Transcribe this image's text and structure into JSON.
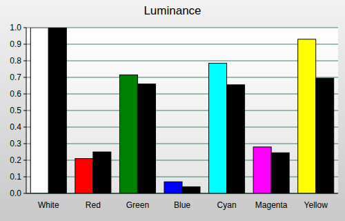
{
  "chart_data": {
    "type": "bar",
    "title": "Luminance",
    "categories": [
      "White",
      "Red",
      "Green",
      "Blue",
      "Cyan",
      "Magenta",
      "Yellow"
    ],
    "series": [
      {
        "colors": [
          "#ffffff",
          "#ff0000",
          "#008000",
          "#0000ff",
          "#00ffff",
          "#ff00ff",
          "#ffff00"
        ],
        "values": [
          1.0,
          0.21,
          0.715,
          0.07,
          0.785,
          0.28,
          0.93
        ]
      },
      {
        "color": "#000000",
        "values": [
          1.0,
          0.25,
          0.66,
          0.04,
          0.655,
          0.245,
          0.695
        ]
      }
    ],
    "ylim": [
      0,
      1
    ],
    "yticks": [
      {
        "value": 0,
        "label": "0.0"
      },
      0.1,
      0.2,
      0.3,
      0.4,
      0.5,
      0.6,
      0.7,
      0.8,
      0.9,
      {
        "value": 1,
        "label": "1.0"
      }
    ],
    "grid": true
  }
}
